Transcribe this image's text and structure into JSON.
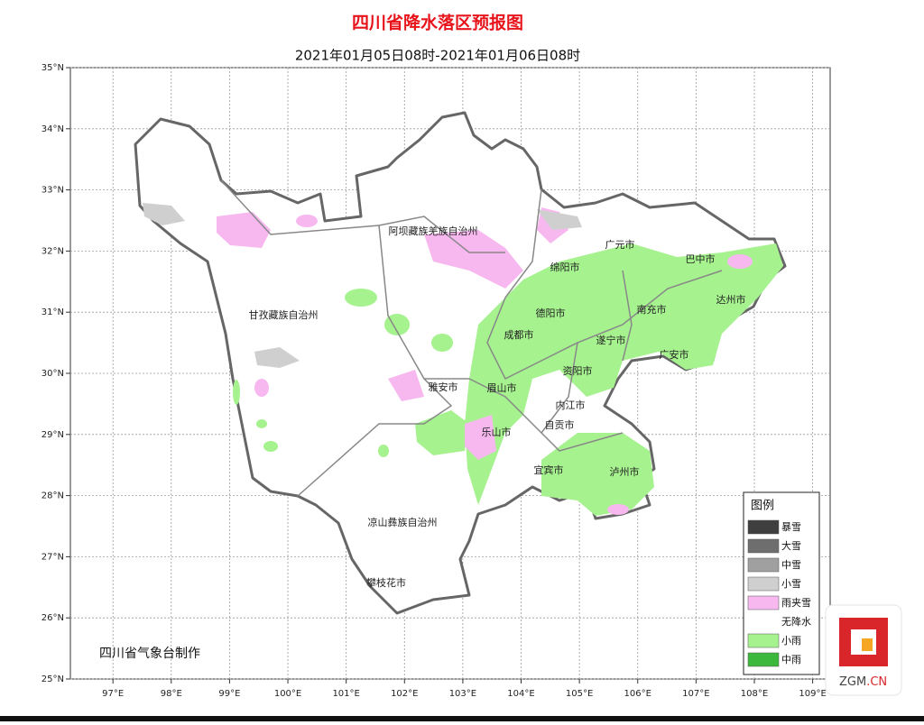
{
  "header": {
    "title": "四川省降水落区预报图",
    "subtitle": "2021年01月05日08时-2021年01月06日08时"
  },
  "map": {
    "xlim": [
      96.27,
      109.3
    ],
    "ylim": [
      25,
      35
    ],
    "lon_ticks": [
      {
        "value": 97,
        "label": "97°E"
      },
      {
        "value": 98,
        "label": "98°E"
      },
      {
        "value": 99,
        "label": "99°E"
      },
      {
        "value": 100,
        "label": "100°E"
      },
      {
        "value": 101,
        "label": "101°E"
      },
      {
        "value": 102,
        "label": "102°E"
      },
      {
        "value": 103,
        "label": "103°E"
      },
      {
        "value": 104,
        "label": "104°E"
      },
      {
        "value": 105,
        "label": "105°E"
      },
      {
        "value": 106,
        "label": "106°E"
      },
      {
        "value": 107,
        "label": "107°E"
      },
      {
        "value": 108,
        "label": "108°E"
      },
      {
        "value": 109,
        "label": "109°E"
      }
    ],
    "lat_ticks": [
      {
        "value": 25,
        "label": "25°N"
      },
      {
        "value": 26,
        "label": "26°N"
      },
      {
        "value": 27,
        "label": "27°N"
      },
      {
        "value": 28,
        "label": "28°N"
      },
      {
        "value": 29,
        "label": "29°N"
      },
      {
        "value": 30,
        "label": "30°N"
      },
      {
        "value": 31,
        "label": "31°N"
      },
      {
        "value": 32,
        "label": "32°N"
      },
      {
        "value": 33,
        "label": "33°N"
      },
      {
        "value": 34,
        "label": "34°N"
      },
      {
        "value": 35,
        "label": "35°N"
      }
    ],
    "grid": true,
    "cities": [
      "阿坝藏族羌族自治州",
      "甘孜藏族自治州",
      "凉山彝族自治州",
      "攀枝花市",
      "广元市",
      "巴中市",
      "绵阳市",
      "德阳市",
      "成都市",
      "南充市",
      "达州市",
      "遂宁市",
      "广安市",
      "资阳市",
      "雅安市",
      "眉山市",
      "内江市",
      "乐山市",
      "自贡市",
      "宜宾市",
      "泸州市"
    ],
    "credit": "四川省气象台制作"
  },
  "legend": {
    "title": "图例",
    "items": [
      {
        "label": "暴雪",
        "color": "#3f3f3f"
      },
      {
        "label": "大雪",
        "color": "#6e6e6e"
      },
      {
        "label": "中雪",
        "color": "#a0a0a0"
      },
      {
        "label": "小雪",
        "color": "#cfcfcf"
      },
      {
        "label": "雨夹雪",
        "color": "#f7b8f0"
      },
      {
        "label": "无降水",
        "color": "#ffffff"
      },
      {
        "label": "小雨",
        "color": "#a6f28f"
      },
      {
        "label": "中雨",
        "color": "#3cb93c"
      }
    ]
  },
  "watermark": {
    "name": "ZGM",
    "suffix": ".CN"
  }
}
